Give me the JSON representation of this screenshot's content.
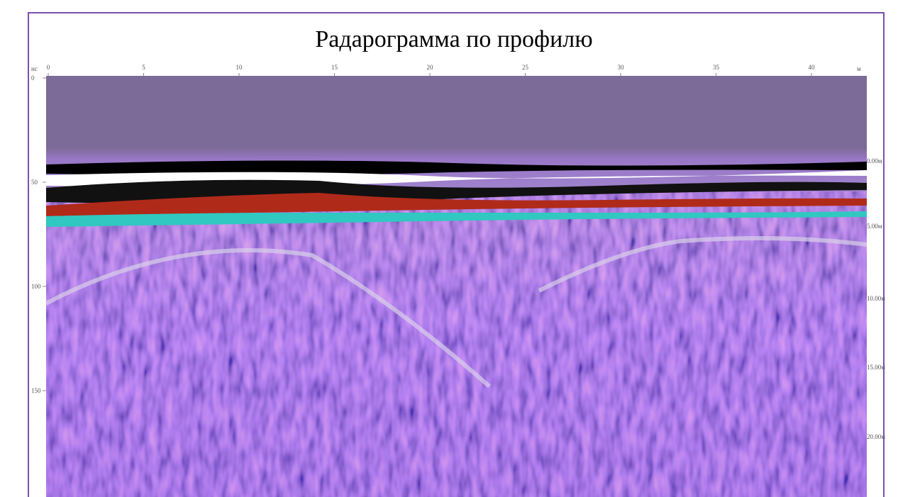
{
  "title": "Радарограмма по профилю",
  "x_axis": {
    "unit": "м",
    "ticks": [
      0,
      5,
      10,
      15,
      20,
      25,
      30,
      35,
      40
    ]
  },
  "y_axis": {
    "unit": "нс",
    "ticks": [
      0,
      50,
      100,
      150
    ]
  },
  "depth_axis": {
    "ticks": [
      "0.00м",
      "5.00м",
      "10.00м",
      "15.00м",
      "20.00м"
    ]
  }
}
